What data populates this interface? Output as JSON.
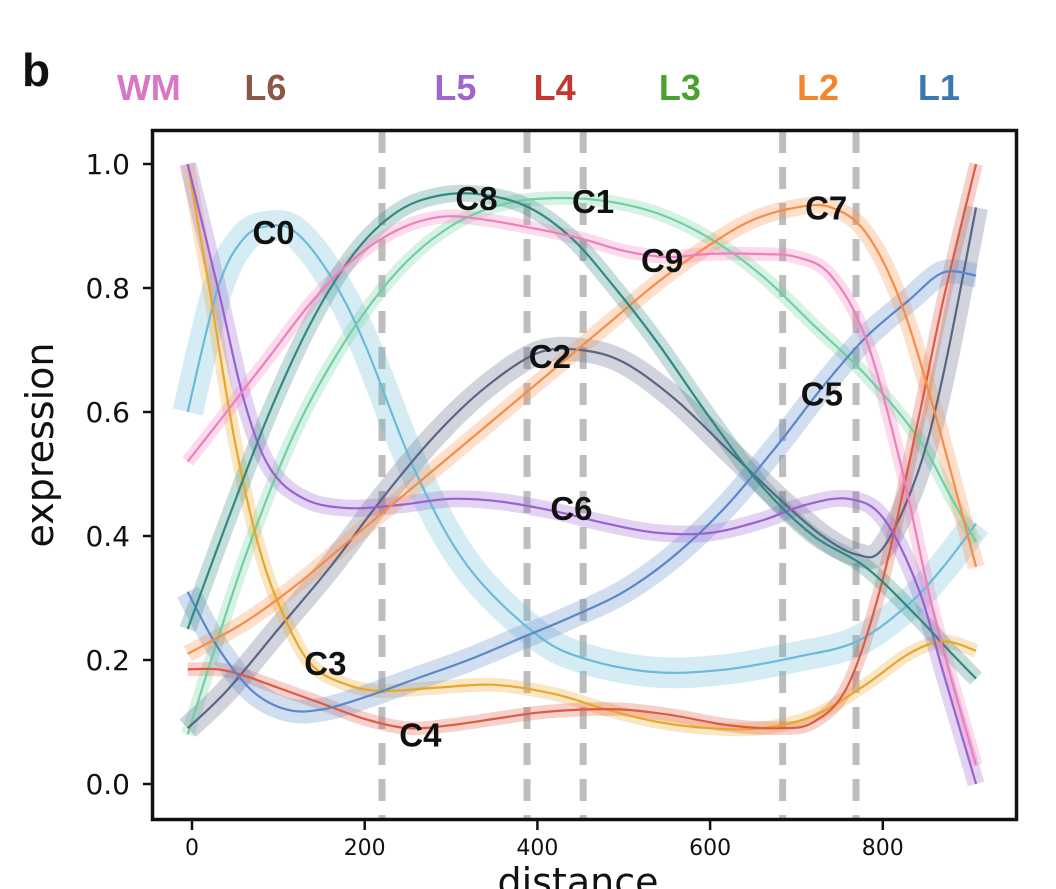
{
  "chart_data": {
    "type": "line",
    "panel_label": "b",
    "xlabel": "distance",
    "ylabel": "expression",
    "xlim": [
      -45,
      955
    ],
    "ylim": [
      -0.06,
      1.055
    ],
    "xticks": [
      0,
      200,
      400,
      600,
      800
    ],
    "xtick_labels": [
      "0",
      "200",
      "400",
      "600",
      "800"
    ],
    "yticks": [
      0.0,
      0.2,
      0.4,
      0.6,
      0.8,
      1.0
    ],
    "ytick_labels": [
      "0.0",
      "0.2",
      "0.4",
      "0.6",
      "0.8",
      "1.0"
    ],
    "grid": false,
    "boundaries": [
      220,
      388,
      453,
      684,
      769
    ],
    "layers": [
      {
        "name": "WM",
        "x": -50,
        "color": "#d877c5"
      },
      {
        "name": "L6",
        "x": 85,
        "color": "#8c564b"
      },
      {
        "name": "L5",
        "x": 305,
        "color": "#a066c8"
      },
      {
        "name": "L4",
        "x": 420,
        "color": "#c7352f"
      },
      {
        "name": "L3",
        "x": 565,
        "color": "#4ba12d"
      },
      {
        "name": "L2",
        "x": 725,
        "color": "#f5852b"
      },
      {
        "name": "L1",
        "x": 865,
        "color": "#3b78b3"
      }
    ],
    "series": [
      {
        "name": "C0",
        "color": "#6bbad9",
        "band": 0.045,
        "label_x": 70,
        "label_y": 0.89,
        "x": [
          -5,
          30,
          60,
          90,
          120,
          160,
          200,
          260,
          320,
          400,
          460,
          540,
          620,
          700,
          770,
          830,
          870,
          908
        ],
        "y": [
          0.6,
          0.8,
          0.88,
          0.9,
          0.89,
          0.82,
          0.71,
          0.5,
          0.35,
          0.24,
          0.2,
          0.18,
          0.185,
          0.205,
          0.23,
          0.29,
          0.35,
          0.42
        ]
      },
      {
        "name": "C1",
        "color": "#6fd0a2",
        "band": 0.02,
        "label_x": 440,
        "label_y": 0.94,
        "x": [
          -5,
          60,
          120,
          180,
          240,
          300,
          360,
          420,
          480,
          540,
          600,
          660,
          720,
          780,
          840,
          880,
          908
        ],
        "y": [
          0.08,
          0.36,
          0.57,
          0.72,
          0.83,
          0.9,
          0.935,
          0.945,
          0.94,
          0.92,
          0.88,
          0.82,
          0.74,
          0.66,
          0.56,
          0.46,
          0.39
        ]
      },
      {
        "name": "C2",
        "color": "#5a6585",
        "band": 0.035,
        "label_x": 390,
        "label_y": 0.69,
        "x": [
          -5,
          40,
          100,
          160,
          220,
          280,
          340,
          400,
          450,
          500,
          560,
          620,
          680,
          730,
          770,
          800,
          840,
          870,
          908
        ],
        "y": [
          0.09,
          0.15,
          0.25,
          0.35,
          0.46,
          0.56,
          0.64,
          0.695,
          0.7,
          0.68,
          0.62,
          0.54,
          0.46,
          0.4,
          0.37,
          0.38,
          0.5,
          0.66,
          0.93
        ]
      },
      {
        "name": "C3",
        "color": "#e8a72a",
        "band": 0.02,
        "label_x": 130,
        "label_y": 0.195,
        "x": [
          -5,
          20,
          50,
          80,
          110,
          140,
          180,
          220,
          280,
          350,
          420,
          480,
          540,
          600,
          660,
          720,
          780,
          830,
          870,
          908
        ],
        "y": [
          1.0,
          0.8,
          0.55,
          0.37,
          0.26,
          0.19,
          0.16,
          0.15,
          0.155,
          0.16,
          0.145,
          0.12,
          0.1,
          0.09,
          0.09,
          0.11,
          0.16,
          0.21,
          0.23,
          0.215
        ]
      },
      {
        "name": "C4",
        "color": "#df5a45",
        "band": 0.02,
        "label_x": 240,
        "label_y": 0.08,
        "x": [
          -5,
          30,
          60,
          100,
          150,
          200,
          250,
          300,
          350,
          400,
          450,
          500,
          560,
          620,
          680,
          720,
          760,
          800,
          840,
          870,
          908
        ],
        "y": [
          0.185,
          0.185,
          0.175,
          0.155,
          0.13,
          0.105,
          0.09,
          0.095,
          0.105,
          0.115,
          0.12,
          0.12,
          0.11,
          0.095,
          0.09,
          0.1,
          0.16,
          0.33,
          0.58,
          0.78,
          1.0
        ]
      },
      {
        "name": "C5",
        "color": "#5b87c9",
        "band": 0.035,
        "label_x": 705,
        "label_y": 0.63,
        "x": [
          -5,
          30,
          70,
          110,
          150,
          200,
          260,
          320,
          380,
          440,
          500,
          560,
          620,
          680,
          730,
          780,
          830,
          870,
          908
        ],
        "y": [
          0.31,
          0.22,
          0.15,
          0.12,
          0.12,
          0.14,
          0.17,
          0.2,
          0.235,
          0.27,
          0.31,
          0.37,
          0.45,
          0.55,
          0.64,
          0.72,
          0.78,
          0.825,
          0.82
        ]
      },
      {
        "name": "C6",
        "color": "#9a62d0",
        "band": 0.025,
        "label_x": 415,
        "label_y": 0.445,
        "x": [
          -5,
          30,
          60,
          90,
          130,
          180,
          240,
          300,
          360,
          420,
          480,
          540,
          600,
          660,
          710,
          760,
          800,
          840,
          870,
          908
        ],
        "y": [
          1.0,
          0.8,
          0.62,
          0.51,
          0.46,
          0.445,
          0.45,
          0.46,
          0.455,
          0.44,
          0.42,
          0.405,
          0.405,
          0.425,
          0.45,
          0.46,
          0.43,
          0.32,
          0.18,
          0.0
        ]
      },
      {
        "name": "C7",
        "color": "#f98c45",
        "band": 0.025,
        "label_x": 710,
        "label_y": 0.93,
        "x": [
          -5,
          60,
          120,
          180,
          240,
          300,
          360,
          420,
          480,
          540,
          600,
          650,
          700,
          740,
          780,
          820,
          860,
          908
        ],
        "y": [
          0.21,
          0.26,
          0.32,
          0.39,
          0.46,
          0.53,
          0.6,
          0.67,
          0.74,
          0.81,
          0.87,
          0.91,
          0.93,
          0.93,
          0.89,
          0.78,
          0.6,
          0.35
        ]
      },
      {
        "name": "C8",
        "color": "#2f8a82",
        "band": 0.025,
        "label_x": 305,
        "label_y": 0.945,
        "x": [
          -5,
          40,
          90,
          140,
          190,
          240,
          290,
          340,
          390,
          440,
          490,
          540,
          600,
          660,
          720,
          780,
          840,
          880,
          908
        ],
        "y": [
          0.25,
          0.42,
          0.6,
          0.75,
          0.86,
          0.925,
          0.95,
          0.95,
          0.93,
          0.88,
          0.8,
          0.71,
          0.59,
          0.48,
          0.4,
          0.35,
          0.27,
          0.21,
          0.17
        ]
      },
      {
        "name": "C9",
        "color": "#ef7fbc",
        "band": 0.02,
        "label_x": 520,
        "label_y": 0.845,
        "x": [
          -5,
          40,
          90,
          140,
          190,
          240,
          290,
          340,
          400,
          450,
          500,
          550,
          600,
          650,
          700,
          740,
          780,
          820,
          860,
          908
        ],
        "y": [
          0.52,
          0.6,
          0.69,
          0.78,
          0.85,
          0.895,
          0.915,
          0.91,
          0.895,
          0.88,
          0.86,
          0.85,
          0.855,
          0.855,
          0.85,
          0.82,
          0.72,
          0.52,
          0.27,
          0.03
        ]
      }
    ]
  }
}
